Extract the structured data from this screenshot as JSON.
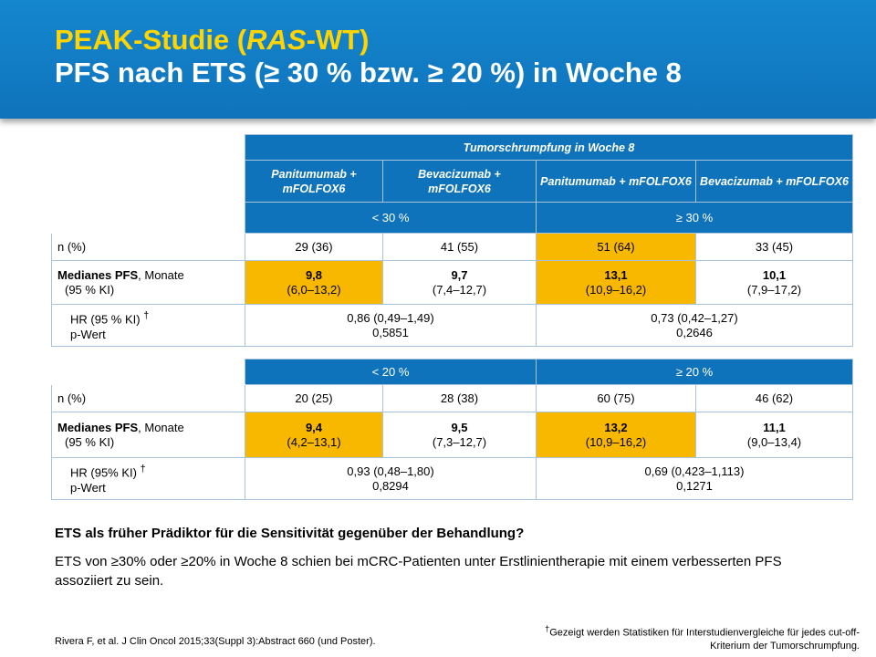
{
  "slide": {
    "title_prefix": "PEAK-Studie (",
    "title_italic": "RAS",
    "title_suffix": "-WT)",
    "subtitle": "PFS nach ETS (≥ 30 % bzw. ≥ 20 %) in Woche 8"
  },
  "table1": {
    "group_header": "Tumorschrumpfung in Woche 8",
    "arm_labels": [
      "Panitumumab + mFOLFOX6",
      "Bevacizumab + mFOLFOX6",
      "Panitumumab + mFOLFOX6",
      "Bevacizumab + mFOLFOX6"
    ],
    "threshold_low": "< 30 %",
    "threshold_high": "≥ 30 %",
    "n_label": "n (%)",
    "n_values": [
      "29 (36)",
      "41 (55)",
      "51 (64)",
      "33 (45)"
    ],
    "pfs_label_bold": "Medianes PFS",
    "pfs_label_rest": ", Monate",
    "pfs_label_ci": "(95 % KI)",
    "pfs_values": [
      "9,8",
      "9,7",
      "13,1",
      "10,1"
    ],
    "pfs_cis": [
      "(6,0–13,2)",
      "(7,4–12,7)",
      "(10,9–16,2)",
      "(7,9–17,2)"
    ],
    "hr_label": "HR (95 % KI)",
    "hr_dagger": "†",
    "p_label": "p-Wert",
    "hr_low": "0,86 (0,49–1,49)",
    "p_low": "0,5851",
    "hr_high": "0,73 (0,42–1,27)",
    "p_high": "0,2646"
  },
  "table2": {
    "threshold_low": "< 20 %",
    "threshold_high": "≥ 20 %",
    "n_label": "n (%)",
    "n_values": [
      "20 (25)",
      "28 (38)",
      "60 (75)",
      "46 (62)"
    ],
    "pfs_label_bold": "Medianes PFS",
    "pfs_label_rest": ", Monate",
    "pfs_label_ci": "(95 % KI)",
    "pfs_values": [
      "9,4",
      "9,5",
      "13,2",
      "11,1"
    ],
    "pfs_cis": [
      "(4,2–13,1)",
      "(7,3–12,7)",
      "(10,9–16,2)",
      "(9,0–13,4)"
    ],
    "hr_label": "HR (95% KI)",
    "hr_dagger": "†",
    "p_label": "p-Wert",
    "hr_low": "0,93 (0,48–1,80)",
    "p_low": "0,8294",
    "hr_high": "0,69 (0,423–1,113)",
    "p_high": "0,1271"
  },
  "text": {
    "question": "ETS als früher Prädiktor für die Sensitivität gegenüber der Behandlung?",
    "answer": "ETS von ≥30% oder ≥20% in Woche 8 schien bei mCRC-Patienten unter Erstlinientherapie mit einem verbesserten PFS assoziiert zu sein.",
    "reference": "Rivera F, et al. J Clin Oncol 2015;33(Suppl 3):Abstract 660 (und Poster).",
    "footnote_dagger": "†",
    "footnote": "Gezeigt werden Statistiken für Interstudienvergleiche für jedes cut-off-Kriterium der Tumorschrumpfung."
  },
  "colors": {
    "header_blue": "#0f73bb",
    "title_yellow": "#ffd400",
    "highlight_gold": "#f9b800"
  }
}
